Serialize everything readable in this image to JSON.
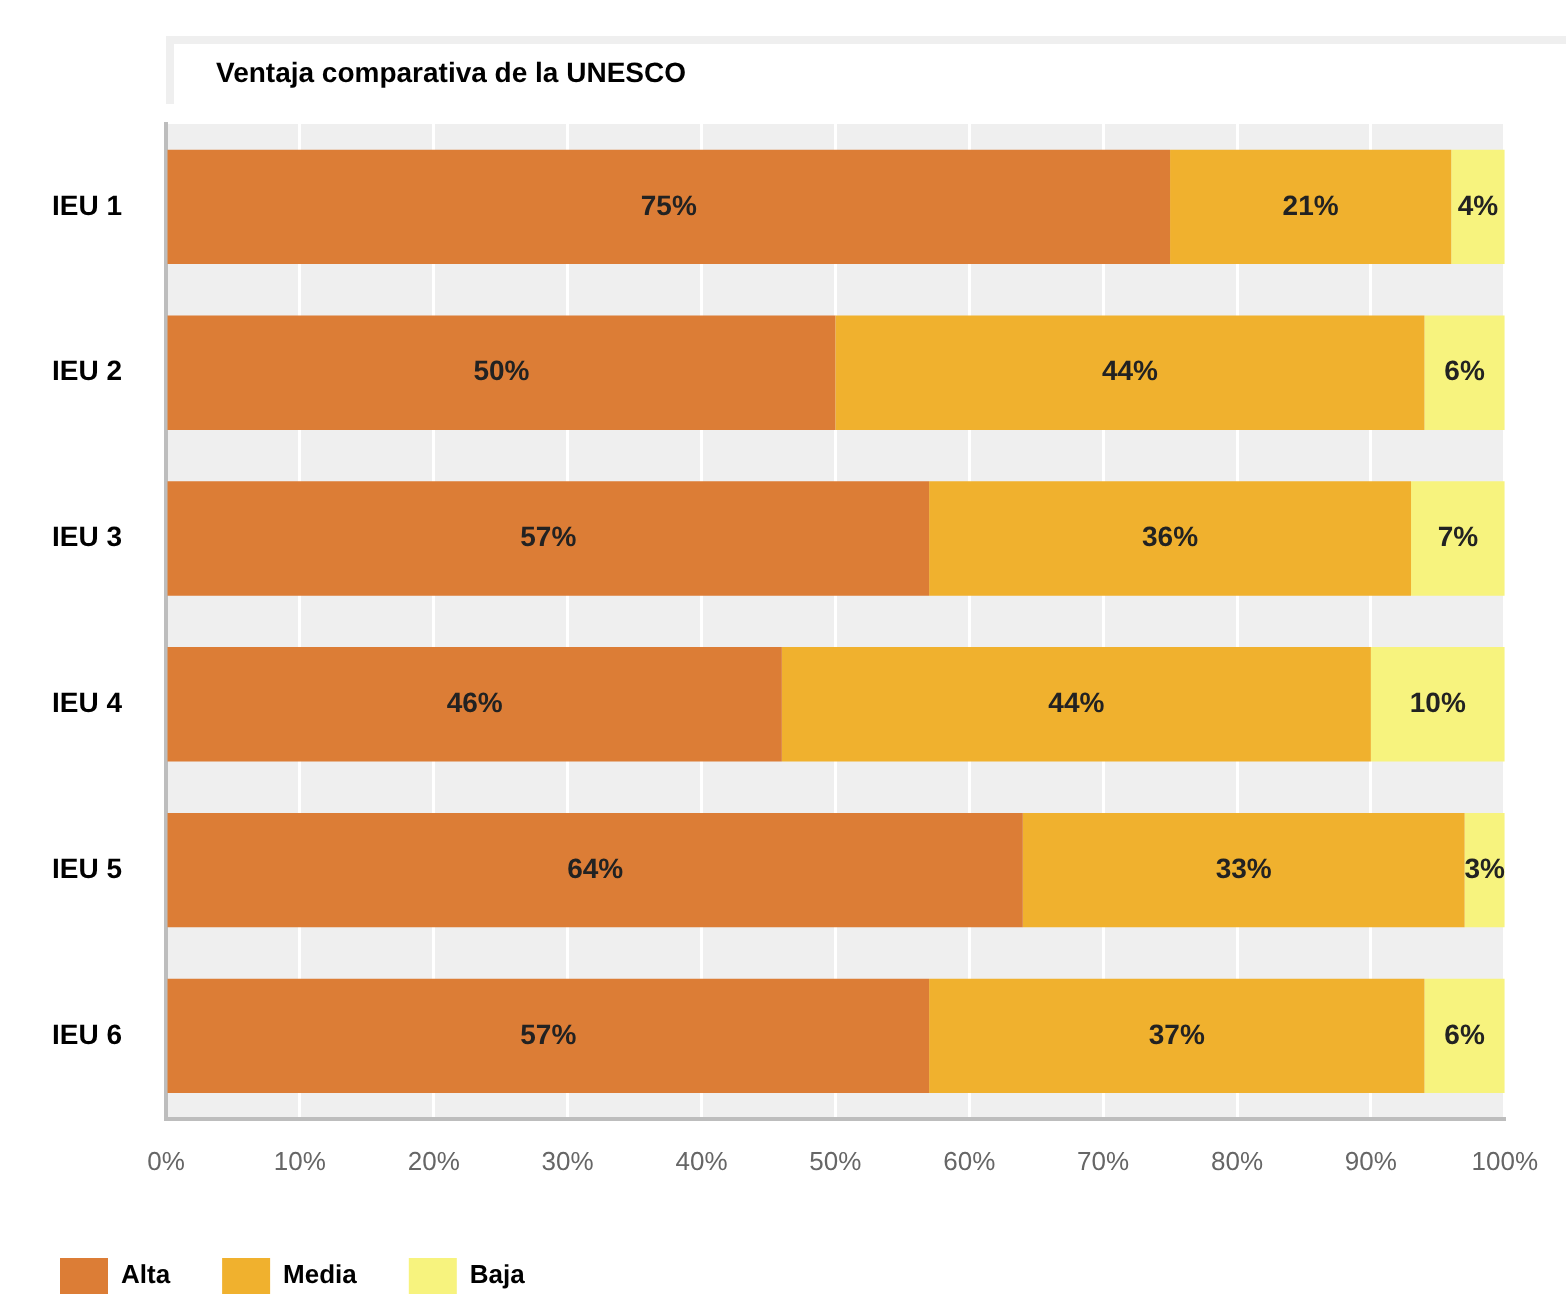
{
  "chart_data": {
    "type": "bar",
    "orientation": "horizontal",
    "stacked": true,
    "title": "Ventaja comparativa de la UNESCO",
    "categories": [
      "IEU 1",
      "IEU 2",
      "IEU 3",
      "IEU 4",
      "IEU 5",
      "IEU 6"
    ],
    "series": [
      {
        "name": "Alta",
        "color": "#dc7d36",
        "values": [
          75,
          50,
          57,
          46,
          64,
          57
        ],
        "value_labels": [
          "75%",
          "50%",
          "57%",
          "46%",
          "64%",
          "57%"
        ]
      },
      {
        "name": "Media",
        "color": "#f0b12e",
        "values": [
          21,
          44,
          36,
          44,
          33,
          37
        ],
        "value_labels": [
          "21%",
          "44%",
          "36%",
          "44%",
          "33%",
          "37%"
        ]
      },
      {
        "name": "Baja",
        "color": "#f7f37e",
        "values": [
          4,
          6,
          7,
          10,
          3,
          6
        ],
        "value_labels": [
          "4%",
          "6%",
          "7%",
          "10%",
          "3%",
          "6%"
        ]
      }
    ],
    "xlim": [
      0,
      100
    ],
    "xticks": [
      {
        "value": 0,
        "label": "0%"
      },
      {
        "value": 10,
        "label": "10%"
      },
      {
        "value": 20,
        "label": "20%"
      },
      {
        "value": 30,
        "label": "30%"
      },
      {
        "value": 40,
        "label": "40%"
      },
      {
        "value": 50,
        "label": "50%"
      },
      {
        "value": 60,
        "label": "60%"
      },
      {
        "value": 70,
        "label": "70%"
      },
      {
        "value": 80,
        "label": "80%"
      },
      {
        "value": 90,
        "label": "90%"
      },
      {
        "value": 100,
        "label": "100%"
      }
    ],
    "grid": "x",
    "legend": "bottom left"
  }
}
